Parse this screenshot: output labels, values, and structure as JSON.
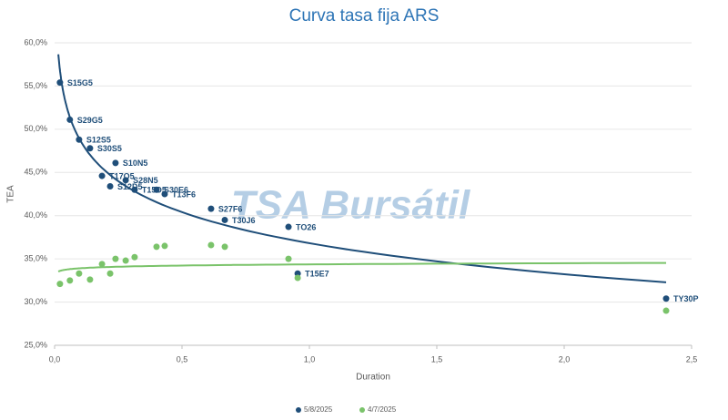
{
  "chart_data": {
    "type": "scatter",
    "title": "Curva tasa fija ARS",
    "watermark": "TSA Bursátil",
    "x_label": "Duration",
    "y_label": "TEA",
    "x": [
      0.021,
      0.06,
      0.096,
      0.139,
      0.239,
      0.186,
      0.279,
      0.218,
      0.314,
      0.4,
      0.432,
      0.614,
      0.668,
      0.918,
      0.954,
      2.4
    ],
    "point_labels": [
      "S15G5",
      "S29G5",
      "S12S5",
      "S30S5",
      "S10N5",
      "T17O5",
      "S28N5",
      "S12D5",
      "T15D5",
      "S30E6",
      "T13F6",
      "S27F6",
      "T30J6",
      "TO26",
      "T15E7",
      "TY30P"
    ],
    "series": [
      {
        "name": "5/8/2025",
        "color": "#1f4e79",
        "values": [
          55.4,
          51.1,
          48.8,
          47.8,
          46.1,
          44.6,
          44.1,
          43.4,
          43.0,
          43.0,
          42.5,
          40.8,
          39.5,
          38.7,
          33.3,
          30.4
        ]
      },
      {
        "name": "4/7/2025",
        "color": "#7ac36a",
        "values": [
          32.1,
          32.5,
          33.3,
          32.6,
          35.0,
          34.4,
          34.8,
          33.3,
          35.2,
          36.4,
          36.5,
          36.6,
          36.4,
          35.0,
          32.8,
          29.0
        ]
      }
    ],
    "xlim": [
      0,
      2.5
    ],
    "xticks": [
      {
        "value": 0,
        "label": "0,0"
      },
      {
        "value": 0.5,
        "label": "0,5"
      },
      {
        "value": 1,
        "label": "1,0"
      },
      {
        "value": 1.5,
        "label": "1,5"
      },
      {
        "value": 2,
        "label": "2,0"
      },
      {
        "value": 2.5,
        "label": "2,5"
      }
    ],
    "ylim": [
      25,
      60
    ],
    "yticks": [
      {
        "value": 25,
        "label": "25,0%"
      },
      {
        "value": 30,
        "label": "30,0%"
      },
      {
        "value": 35,
        "label": "35,0%"
      },
      {
        "value": 40,
        "label": "40,0%"
      },
      {
        "value": 45,
        "label": "45,0%"
      },
      {
        "value": 50,
        "label": "50,0%"
      },
      {
        "value": 55,
        "label": "55,0%"
      },
      {
        "value": 60,
        "label": "60,0%"
      }
    ],
    "grid": true,
    "trendline": "log",
    "legend": "bottom"
  }
}
